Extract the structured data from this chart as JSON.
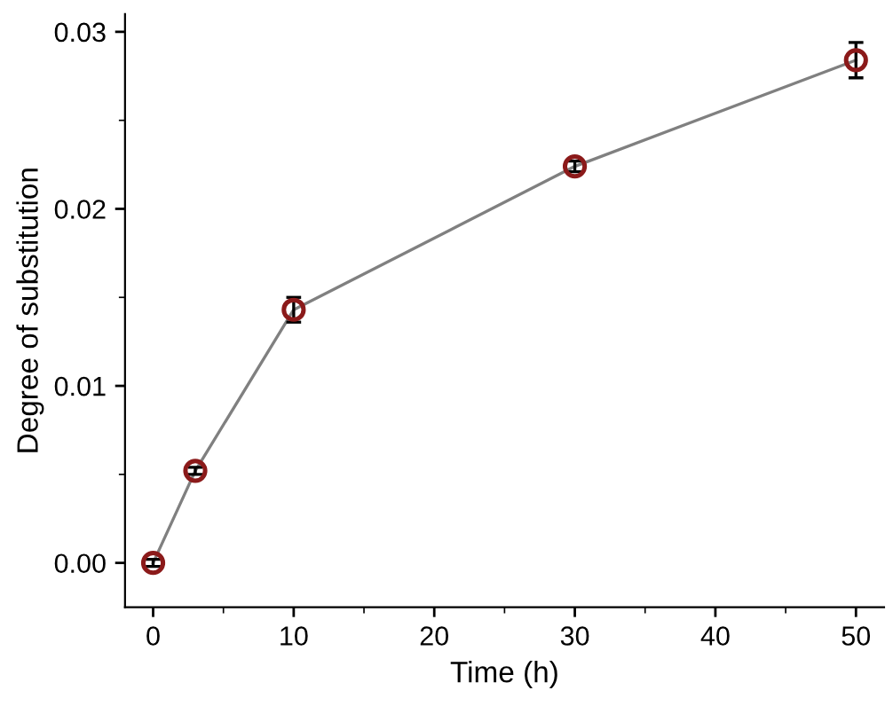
{
  "chart_data": {
    "type": "line",
    "xlabel": "Time (h)",
    "ylabel": "Degree of substitution",
    "x": [
      0,
      3,
      10,
      30,
      50
    ],
    "series": [
      {
        "color": "#8b1a1a",
        "values": [
          0.0,
          0.0052,
          0.0143,
          0.0224,
          0.0284
        ],
        "errors": [
          0.0002,
          0.0002,
          0.0007,
          0.0003,
          0.001
        ]
      }
    ],
    "xlim": [
      -2,
      52
    ],
    "ylim": [
      -0.0025,
      0.031
    ],
    "xticks": [
      0,
      10,
      20,
      30,
      40,
      50
    ],
    "yticks": [
      {
        "value": 0,
        "label": "0.00"
      },
      {
        "value": 0.01,
        "label": "0.01"
      },
      {
        "value": 0.02,
        "label": "0.02"
      },
      {
        "value": 0.03,
        "label": "0.03"
      }
    ],
    "marker": "circle",
    "line_style": "solid",
    "grid": false,
    "legend": false
  }
}
